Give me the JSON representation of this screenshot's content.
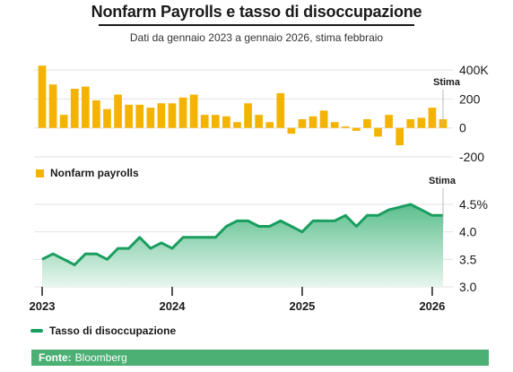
{
  "title": "Nonfarm Payrolls e tasso di disoccupazione",
  "subtitle": "Dati da gennaio 2023 a gennaio 2026, stima febbraio",
  "footer": {
    "label": "Fonte:",
    "source": "Bloomberg"
  },
  "colors": {
    "bars": "#f5b301",
    "line": "#1a9e5f",
    "area_top": "#5cbf8e",
    "area_bottom": "#e8f6ee",
    "footer": "#4caf73"
  },
  "chart_data": [
    {
      "type": "bar",
      "series_label": "Nonfarm payrolls",
      "estimate_label": "Stima",
      "yticks": [
        "400K",
        "200",
        "0",
        "-200"
      ],
      "ylim": [
        -200,
        450
      ],
      "x_ticks": [
        "2023",
        "2024",
        "2025",
        "2026"
      ],
      "months": [
        "2023-01",
        "2023-02",
        "2023-03",
        "2023-04",
        "2023-05",
        "2023-06",
        "2023-07",
        "2023-08",
        "2023-09",
        "2023-10",
        "2023-11",
        "2023-12",
        "2024-01",
        "2024-02",
        "2024-03",
        "2024-04",
        "2024-05",
        "2024-06",
        "2024-07",
        "2024-08",
        "2024-09",
        "2024-10",
        "2024-11",
        "2024-12",
        "2025-01",
        "2025-02",
        "2025-03",
        "2025-04",
        "2025-05",
        "2025-06",
        "2025-07",
        "2025-08",
        "2025-09",
        "2025-10",
        "2025-11",
        "2025-12",
        "2026-01",
        "2026-02"
      ],
      "values": [
        430,
        300,
        90,
        270,
        285,
        190,
        130,
        230,
        160,
        160,
        140,
        170,
        170,
        210,
        230,
        90,
        90,
        80,
        40,
        170,
        90,
        40,
        240,
        -40,
        60,
        80,
        120,
        40,
        10,
        -20,
        60,
        -60,
        90,
        -120,
        60,
        70,
        140,
        60
      ]
    },
    {
      "type": "area",
      "series_label": "Tasso di disoccupazione",
      "estimate_label": "Stima",
      "yticks": [
        "4.5%",
        "4.0",
        "3.5",
        "3.0"
      ],
      "ylim": [
        3.0,
        4.5
      ],
      "x_ticks": [
        "2023",
        "2024",
        "2025",
        "2026"
      ],
      "months": [
        "2023-01",
        "2023-02",
        "2023-03",
        "2023-04",
        "2023-05",
        "2023-06",
        "2023-07",
        "2023-08",
        "2023-09",
        "2023-10",
        "2023-11",
        "2023-12",
        "2024-01",
        "2024-02",
        "2024-03",
        "2024-04",
        "2024-05",
        "2024-06",
        "2024-07",
        "2024-08",
        "2024-09",
        "2024-10",
        "2024-11",
        "2024-12",
        "2025-01",
        "2025-02",
        "2025-03",
        "2025-04",
        "2025-05",
        "2025-06",
        "2025-07",
        "2025-08",
        "2025-09",
        "2025-10",
        "2025-11",
        "2025-12",
        "2026-01",
        "2026-02"
      ],
      "values": [
        3.5,
        3.6,
        3.5,
        3.4,
        3.6,
        3.6,
        3.5,
        3.7,
        3.7,
        3.9,
        3.7,
        3.8,
        3.7,
        3.9,
        3.9,
        3.9,
        3.9,
        4.1,
        4.2,
        4.2,
        4.1,
        4.1,
        4.2,
        4.1,
        4.0,
        4.2,
        4.2,
        4.2,
        4.3,
        4.1,
        4.3,
        4.3,
        4.4,
        4.45,
        4.5,
        4.4,
        4.3,
        4.3
      ]
    }
  ]
}
